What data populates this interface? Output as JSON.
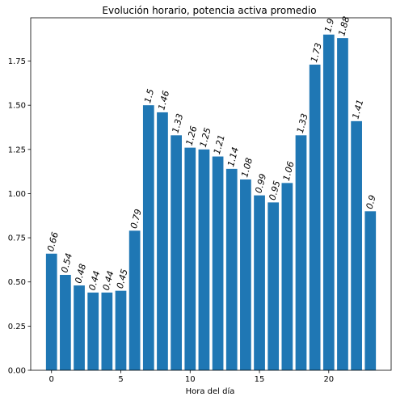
{
  "chart_data": {
    "type": "bar",
    "title": "Evolución horario, potencia activa promedio",
    "xlabel": "Hora del día",
    "ylabel": "",
    "x": [
      0,
      1,
      2,
      3,
      4,
      5,
      6,
      7,
      8,
      9,
      10,
      11,
      12,
      13,
      14,
      15,
      16,
      17,
      18,
      19,
      20,
      21,
      22,
      23
    ],
    "values": [
      0.66,
      0.54,
      0.48,
      0.44,
      0.44,
      0.45,
      0.79,
      1.5,
      1.46,
      1.33,
      1.26,
      1.25,
      1.21,
      1.14,
      1.08,
      0.99,
      0.95,
      1.06,
      1.33,
      1.73,
      1.9,
      1.88,
      1.41,
      0.9
    ],
    "data_labels": [
      "0.66",
      "0.54",
      "0.48",
      "0.44",
      "0.44",
      "0.45",
      "0.79",
      "1.5",
      "1.46",
      "1.33",
      "1.26",
      "1.25",
      "1.21",
      "1.14",
      "1.08",
      "0.99",
      "0.95",
      "1.06",
      "1.33",
      "1.73",
      "1.9",
      "1.88",
      "1.41",
      "0.9"
    ],
    "xticks": [
      0,
      5,
      10,
      15,
      20
    ],
    "xtick_labels": [
      "0",
      "5",
      "10",
      "15",
      "20"
    ],
    "yticks": [
      0,
      0.25,
      0.5,
      0.75,
      1.0,
      1.25,
      1.5,
      1.75
    ],
    "ytick_labels": [
      "0.00",
      "0.25",
      "0.50",
      "0.75",
      "1.00",
      "1.25",
      "1.50",
      "1.75"
    ],
    "xlim": [
      -1.5,
      24.5
    ],
    "ylim": [
      0,
      1.995
    ],
    "grid": false,
    "bar_color": "#1f77b4",
    "label_rotation": "rotated ~75° counter-clockwise, italic"
  }
}
